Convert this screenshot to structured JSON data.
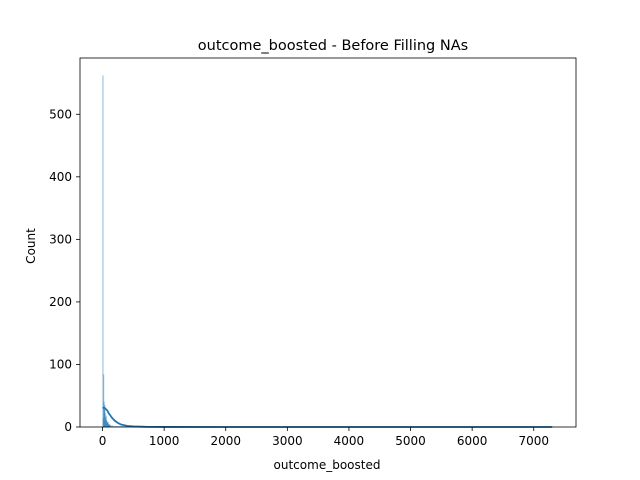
{
  "chart_data": {
    "type": "bar",
    "title": "outcome_boosted - Before Filling NAs",
    "xlabel": "outcome_boosted",
    "ylabel": "Count",
    "xlim": [
      -366,
      7686
    ],
    "ylim": [
      0,
      590
    ],
    "xticks": [
      0,
      1000,
      2000,
      3000,
      4000,
      5000,
      6000,
      7000
    ],
    "yticks": [
      0,
      100,
      200,
      300,
      400,
      500
    ],
    "grid": false,
    "colors": {
      "bars": "#1f77b4",
      "kde": "#1f77b4",
      "axes": "#000000"
    },
    "bins": [
      {
        "x0": 0,
        "x1": 6,
        "count": 562
      },
      {
        "x0": 6,
        "x1": 12,
        "count": 14
      },
      {
        "x0": 12,
        "x1": 18,
        "count": 84
      },
      {
        "x0": 18,
        "x1": 24,
        "count": 40
      },
      {
        "x0": 24,
        "x1": 30,
        "count": 28
      },
      {
        "x0": 30,
        "x1": 36,
        "count": 35
      },
      {
        "x0": 36,
        "x1": 42,
        "count": 22
      },
      {
        "x0": 42,
        "x1": 48,
        "count": 15
      },
      {
        "x0": 48,
        "x1": 54,
        "count": 12
      },
      {
        "x0": 54,
        "x1": 60,
        "count": 18
      },
      {
        "x0": 60,
        "x1": 66,
        "count": 10
      },
      {
        "x0": 66,
        "x1": 72,
        "count": 9
      },
      {
        "x0": 72,
        "x1": 78,
        "count": 7
      },
      {
        "x0": 78,
        "x1": 84,
        "count": 6
      },
      {
        "x0": 84,
        "x1": 90,
        "count": 8
      },
      {
        "x0": 90,
        "x1": 96,
        "count": 5
      },
      {
        "x0": 96,
        "x1": 102,
        "count": 4
      },
      {
        "x0": 102,
        "x1": 108,
        "count": 3
      },
      {
        "x0": 108,
        "x1": 114,
        "count": 4
      },
      {
        "x0": 114,
        "x1": 120,
        "count": 3
      },
      {
        "x0": 120,
        "x1": 140,
        "count": 2
      },
      {
        "x0": 140,
        "x1": 170,
        "count": 2
      },
      {
        "x0": 170,
        "x1": 220,
        "count": 1
      },
      {
        "x0": 220,
        "x1": 300,
        "count": 1
      },
      {
        "x0": 300,
        "x1": 420,
        "count": 1
      }
    ],
    "kde": {
      "x": [
        0,
        20,
        40,
        60,
        80,
        100,
        130,
        160,
        200,
        250,
        300,
        400,
        500,
        700,
        1000,
        2000,
        3000,
        4000,
        5000,
        6000,
        7000,
        7300
      ],
      "y": [
        30,
        31,
        30,
        28,
        26,
        22,
        18,
        14,
        10,
        6.5,
        4,
        1.8,
        0.9,
        0.3,
        0.1,
        0.02,
        0.01,
        0.01,
        0.01,
        0.01,
        0.01,
        0.01
      ]
    }
  }
}
